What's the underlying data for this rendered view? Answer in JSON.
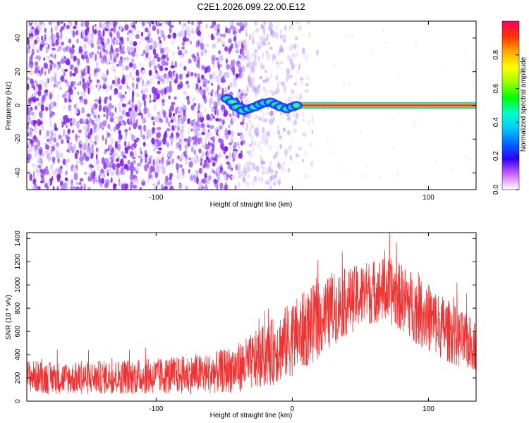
{
  "title": "C2E1.2026.099.22.00.E12",
  "chart_data": [
    {
      "type": "heatmap",
      "name": "spectrogram",
      "xlabel": "Height of straight line (km)",
      "ylabel": "Frequency (Hz)",
      "xlim": [
        -195,
        135
      ],
      "ylim": [
        -50,
        50
      ],
      "xticks": [
        -100,
        0,
        100
      ],
      "xtick_labels": [
        "-100",
        "",
        "100"
      ],
      "yticks": [
        -40,
        -20,
        0,
        20,
        40
      ],
      "grid": false,
      "noise_region_x": [
        -195,
        -35
      ],
      "noise_fade_x": [
        -35,
        0
      ],
      "signal": {
        "frequency": 0,
        "x_start": -48,
        "x_end": 135,
        "band_halfwidth": 2
      },
      "noise_colors": [
        "#8a2be2",
        "#7a1ff0",
        "#9b59f5",
        "#b38cff",
        "#d4bfff",
        "#e6dcff"
      ],
      "colorbar": {
        "label": "Normalized spectral amplitude",
        "range": [
          0.0,
          1.0
        ],
        "ticks": [
          0.0,
          0.2,
          0.4,
          0.6,
          0.8
        ],
        "tick_labels": [
          "0.0",
          "0.2",
          "0.4",
          "0.6",
          "0.8"
        ],
        "stops": [
          "#ffffff",
          "#cc66ff",
          "#3300ff",
          "#0066ff",
          "#00ccff",
          "#00ffcc",
          "#00ff00",
          "#99ff00",
          "#ffff00",
          "#ffaa00",
          "#ff3300",
          "#ff0066"
        ]
      }
    },
    {
      "type": "line",
      "name": "snr",
      "xlabel": "Height of straight line (km)",
      "ylabel": "SNR (10 * v/v)",
      "xlim": [
        -195,
        135
      ],
      "ylim": [
        0,
        1450
      ],
      "xticks": [
        -100,
        0,
        100
      ],
      "xtick_labels": [
        "-100",
        "0",
        "100"
      ],
      "yticks": [
        0,
        200,
        400,
        600,
        800,
        1000,
        1200,
        1400
      ],
      "color": "#ee3333",
      "series": [
        {
          "name": "SNR",
          "x": [
            -195,
            -180,
            -160,
            -140,
            -120,
            -100,
            -80,
            -60,
            -45,
            -35,
            -25,
            -15,
            -5,
            5,
            15,
            25,
            35,
            45,
            55,
            65,
            75,
            85,
            95,
            105,
            115,
            125,
            135
          ],
          "center": [
            220,
            200,
            195,
            205,
            210,
            215,
            225,
            240,
            270,
            310,
            360,
            420,
            500,
            580,
            660,
            740,
            830,
            880,
            930,
            960,
            930,
            850,
            760,
            680,
            600,
            520,
            480
          ],
          "spread": [
            140,
            140,
            140,
            145,
            150,
            155,
            165,
            175,
            200,
            230,
            260,
            290,
            320,
            330,
            340,
            320,
            300,
            280,
            280,
            280,
            290,
            300,
            300,
            290,
            270,
            250,
            220
          ]
        }
      ]
    }
  ]
}
